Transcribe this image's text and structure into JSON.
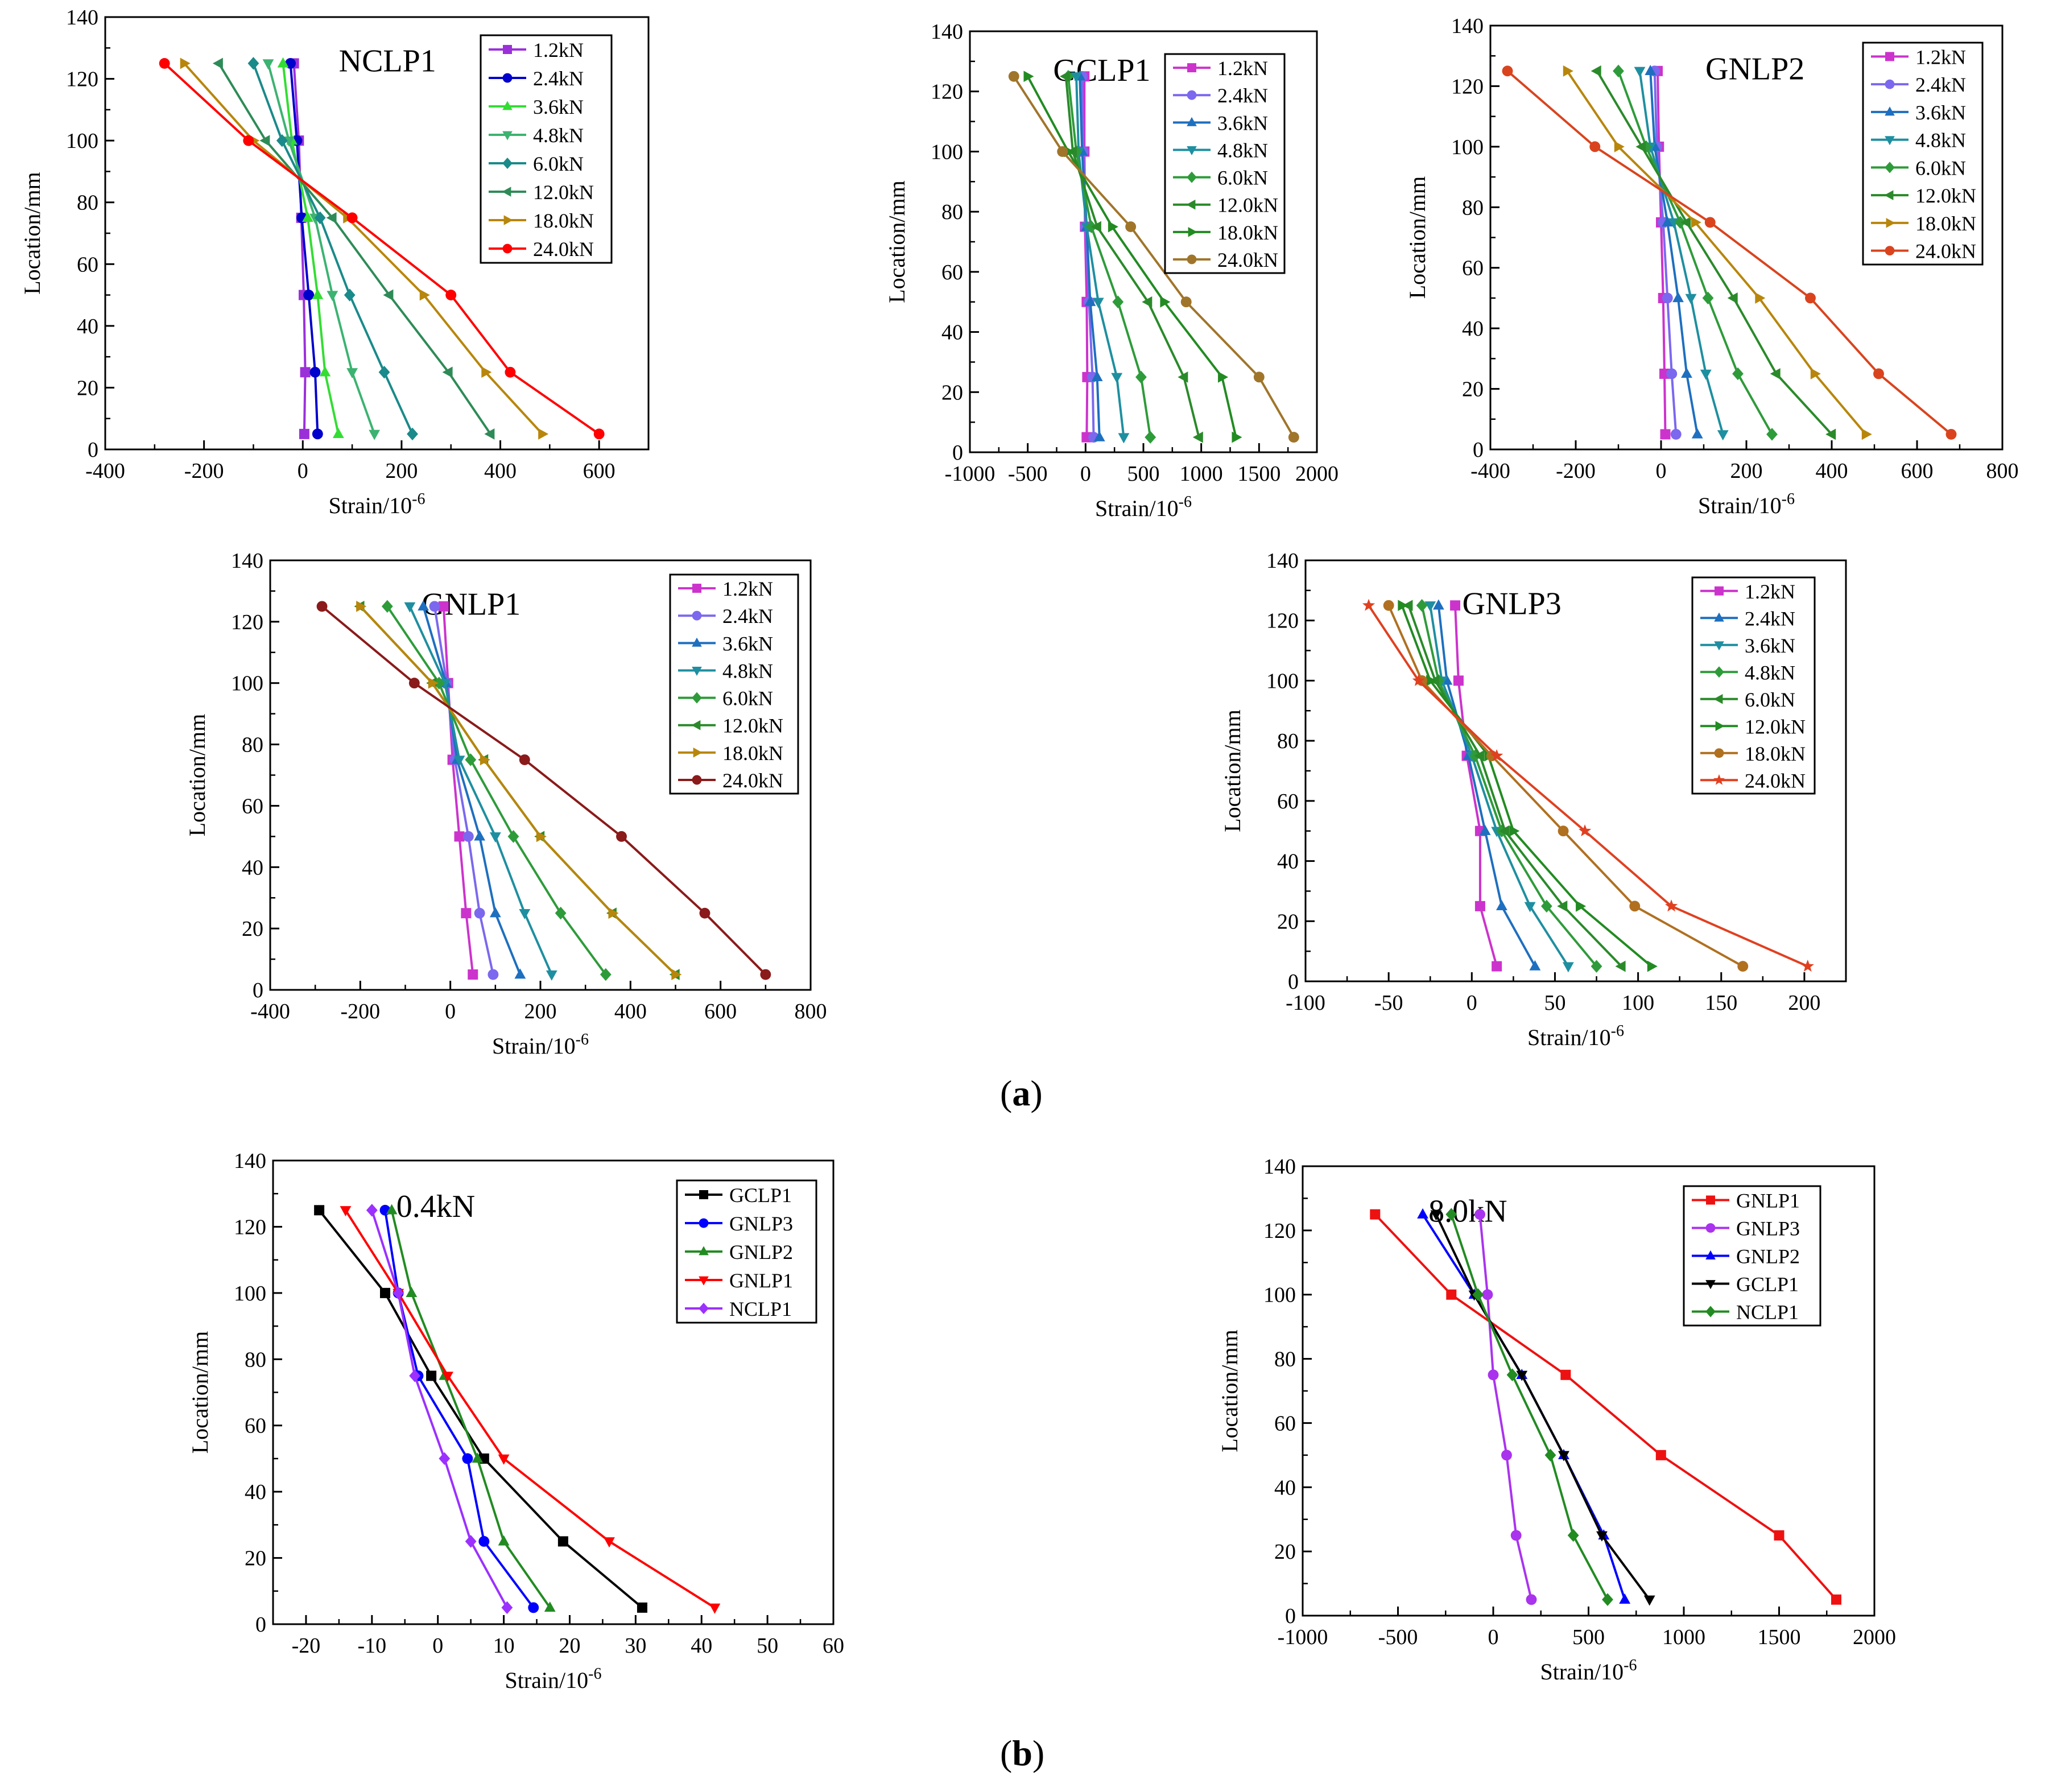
{
  "figure": {
    "label_a": "a",
    "label_b": "b"
  },
  "chart_data": [
    {
      "type": "line",
      "title": "NCLP1",
      "xlabel": "Strain/10",
      "xlabel_sup": "-6",
      "ylabel": "Location/mm",
      "xlim": [
        -400,
        700
      ],
      "ylim": [
        0,
        140
      ],
      "xticks": [
        -400,
        -200,
        0,
        200,
        400,
        600
      ],
      "yticks": [
        0,
        20,
        40,
        60,
        80,
        100,
        120,
        140
      ],
      "grid": false,
      "legend": "top-right",
      "y": [
        5,
        25,
        50,
        75,
        100,
        125
      ],
      "series": [
        {
          "name": "1.2kN",
          "color": "#9b30d9",
          "marker": "square",
          "x": [
            3,
            5,
            2,
            -3,
            -8,
            -18
          ]
        },
        {
          "name": "2.4kN",
          "color": "#0000cc",
          "marker": "circle",
          "x": [
            30,
            25,
            12,
            -2,
            -12,
            -25
          ]
        },
        {
          "name": "3.6kN",
          "color": "#33dd33",
          "marker": "triangle-up",
          "x": [
            72,
            45,
            30,
            10,
            -22,
            -40
          ]
        },
        {
          "name": "4.8kN",
          "color": "#3cb371",
          "marker": "triangle-down",
          "x": [
            145,
            100,
            60,
            25,
            -28,
            -70
          ]
        },
        {
          "name": "6.0kN",
          "color": "#1a8a8a",
          "marker": "diamond",
          "x": [
            222,
            165,
            95,
            35,
            -42,
            -100
          ]
        },
        {
          "name": "12.0kN",
          "color": "#2e8b57",
          "marker": "triangle-left",
          "x": [
            380,
            295,
            175,
            60,
            -75,
            -170
          ]
        },
        {
          "name": "18.0kN",
          "color": "#b8860b",
          "marker": "triangle-right",
          "x": [
            485,
            370,
            245,
            90,
            -100,
            -240
          ]
        },
        {
          "name": "24.0kN",
          "color": "#ff0000",
          "marker": "circle",
          "x": [
            600,
            420,
            300,
            100,
            -110,
            -280
          ]
        }
      ]
    },
    {
      "type": "line",
      "title": "GCLP1",
      "xlabel": "Strain/10",
      "xlabel_sup": "-6",
      "ylabel": "Location/mm",
      "xlim": [
        -1000,
        2000
      ],
      "ylim": [
        0,
        140
      ],
      "xticks": [
        -1000,
        -500,
        0,
        500,
        1000,
        1500,
        2000
      ],
      "yticks": [
        0,
        20,
        40,
        60,
        80,
        100,
        120,
        140
      ],
      "grid": false,
      "legend": "top-right",
      "y": [
        5,
        25,
        50,
        75,
        100,
        125
      ],
      "series": [
        {
          "name": "1.2kN",
          "color": "#cc33cc",
          "marker": "square",
          "x": [
            10,
            15,
            10,
            -5,
            -10,
            -10
          ]
        },
        {
          "name": "2.4kN",
          "color": "#7b68ee",
          "marker": "circle",
          "x": [
            70,
            60,
            30,
            0,
            -20,
            -30
          ]
        },
        {
          "name": "3.6kN",
          "color": "#1e6fbf",
          "marker": "triangle-up",
          "x": [
            120,
            100,
            40,
            10,
            -30,
            -50
          ]
        },
        {
          "name": "4.8kN",
          "color": "#1e8fa0",
          "marker": "triangle-down",
          "x": [
            330,
            270,
            110,
            10,
            -60,
            -80
          ]
        },
        {
          "name": "6.0kN",
          "color": "#2e9b3a",
          "marker": "diamond",
          "x": [
            560,
            480,
            280,
            50,
            -80,
            -150
          ]
        },
        {
          "name": "12.0kN",
          "color": "#2a8a2a",
          "marker": "triangle-left",
          "x": [
            980,
            850,
            540,
            100,
            -110,
            -170
          ]
        },
        {
          "name": "18.0kN",
          "color": "#228b22",
          "marker": "triangle-right",
          "x": [
            1300,
            1180,
            680,
            230,
            -150,
            -500
          ]
        },
        {
          "name": "24.0kN",
          "color": "#a0752a",
          "marker": "circle",
          "x": [
            1800,
            1500,
            870,
            390,
            -200,
            -620
          ]
        }
      ]
    },
    {
      "type": "line",
      "title": "GNLP2",
      "xlabel": "Strain/10",
      "xlabel_sup": "-6",
      "ylabel": "Location/mm",
      "xlim": [
        -400,
        800
      ],
      "ylim": [
        0,
        140
      ],
      "xticks": [
        -400,
        -200,
        0,
        200,
        400,
        600,
        800
      ],
      "yticks": [
        0,
        20,
        40,
        60,
        80,
        100,
        120,
        140
      ],
      "grid": false,
      "legend": "top-right",
      "y": [
        5,
        25,
        50,
        75,
        100,
        125
      ],
      "series": [
        {
          "name": "1.2kN",
          "color": "#cc33cc",
          "marker": "square",
          "x": [
            10,
            8,
            5,
            0,
            -5,
            -8
          ]
        },
        {
          "name": "2.4kN",
          "color": "#7b68ee",
          "marker": "circle",
          "x": [
            35,
            25,
            15,
            5,
            -10,
            -15
          ]
        },
        {
          "name": "3.6kN",
          "color": "#1e6fbf",
          "marker": "triangle-up",
          "x": [
            85,
            60,
            40,
            15,
            -15,
            -25
          ]
        },
        {
          "name": "4.8kN",
          "color": "#1e8fa0",
          "marker": "triangle-down",
          "x": [
            145,
            105,
            70,
            30,
            -25,
            -50
          ]
        },
        {
          "name": "6.0kN",
          "color": "#2e9b3a",
          "marker": "diamond",
          "x": [
            260,
            180,
            110,
            45,
            -35,
            -100
          ]
        },
        {
          "name": "12.0kN",
          "color": "#2a8a2a",
          "marker": "triangle-left",
          "x": [
            400,
            270,
            170,
            60,
            -45,
            -150
          ]
        },
        {
          "name": "18.0kN",
          "color": "#b8860b",
          "marker": "triangle-right",
          "x": [
            480,
            360,
            230,
            80,
            -100,
            -220
          ]
        },
        {
          "name": "24.0kN",
          "color": "#d9441e",
          "marker": "circle",
          "x": [
            680,
            510,
            350,
            115,
            -155,
            -360
          ]
        }
      ]
    },
    {
      "type": "line",
      "title": "GNLP1",
      "xlabel": "Strain/10",
      "xlabel_sup": "-6",
      "ylabel": "Location/mm",
      "xlim": [
        -400,
        800
      ],
      "ylim": [
        0,
        140
      ],
      "xticks": [
        -400,
        -200,
        0,
        200,
        400,
        600,
        800
      ],
      "yticks": [
        0,
        20,
        40,
        60,
        80,
        100,
        120,
        140
      ],
      "grid": false,
      "legend": "top-right",
      "y": [
        5,
        25,
        50,
        75,
        100,
        125
      ],
      "series": [
        {
          "name": "1.2kN",
          "color": "#cc33cc",
          "marker": "square",
          "x": [
            50,
            35,
            20,
            5,
            -5,
            -15
          ]
        },
        {
          "name": "2.4kN",
          "color": "#7b68ee",
          "marker": "circle",
          "x": [
            95,
            65,
            40,
            10,
            -8,
            -35
          ]
        },
        {
          "name": "3.6kN",
          "color": "#1e6fbf",
          "marker": "triangle-up",
          "x": [
            155,
            100,
            65,
            15,
            -10,
            -60
          ]
        },
        {
          "name": "4.8kN",
          "color": "#1e8fa0",
          "marker": "triangle-down",
          "x": [
            225,
            165,
            100,
            20,
            -12,
            -90
          ]
        },
        {
          "name": "6.0kN",
          "color": "#2e9b3a",
          "marker": "diamond",
          "x": [
            345,
            245,
            140,
            45,
            -25,
            -140
          ]
        },
        {
          "name": "12.0kN",
          "color": "#2a8a2a",
          "marker": "triangle-left",
          "x": [
            500,
            360,
            200,
            75,
            -40,
            -200
          ]
        },
        {
          "name": "18.0kN",
          "color": "#b8860b",
          "marker": "triangle-right",
          "x": [
            500,
            360,
            200,
            75,
            -40,
            -200
          ]
        },
        {
          "name": "24.0kN",
          "color": "#8b1a1a",
          "marker": "circle",
          "x": [
            700,
            565,
            380,
            165,
            -80,
            -285
          ]
        }
      ]
    },
    {
      "type": "line",
      "title": "GNLP3",
      "xlabel": "Strain/10",
      "xlabel_sup": "-6",
      "ylabel": "Location/mm",
      "xlim": [
        -100,
        225
      ],
      "ylim": [
        0,
        140
      ],
      "xticks": [
        -100,
        -50,
        0,
        50,
        100,
        150,
        200
      ],
      "yticks": [
        0,
        20,
        40,
        60,
        80,
        100,
        120,
        140
      ],
      "grid": false,
      "legend": "top-right",
      "y": [
        5,
        25,
        50,
        75,
        100,
        125
      ],
      "series": [
        {
          "name": "1.2kN",
          "color": "#cc33cc",
          "marker": "square",
          "x": [
            15,
            5,
            5,
            -3,
            -8,
            -10
          ]
        },
        {
          "name": "2.4kN",
          "color": "#1e6fbf",
          "marker": "triangle-up",
          "x": [
            38,
            18,
            8,
            -2,
            -15,
            -20
          ]
        },
        {
          "name": "3.6kN",
          "color": "#1e8fa0",
          "marker": "triangle-down",
          "x": [
            58,
            35,
            15,
            0,
            -18,
            -25
          ]
        },
        {
          "name": "4.8kN",
          "color": "#2e9b3a",
          "marker": "diamond",
          "x": [
            75,
            45,
            18,
            2,
            -20,
            -30
          ]
        },
        {
          "name": "6.0kN",
          "color": "#2a8a2a",
          "marker": "triangle-left",
          "x": [
            90,
            55,
            20,
            5,
            -22,
            -38
          ]
        },
        {
          "name": "12.0kN",
          "color": "#228b22",
          "marker": "triangle-right",
          "x": [
            108,
            65,
            25,
            10,
            -25,
            -42
          ]
        },
        {
          "name": "18.0kN",
          "color": "#b07020",
          "marker": "circle",
          "x": [
            163,
            98,
            55,
            12,
            -30,
            -50
          ]
        },
        {
          "name": "24.0kN",
          "color": "#e04020",
          "marker": "star",
          "x": [
            202,
            120,
            68,
            15,
            -32,
            -62
          ]
        }
      ]
    },
    {
      "type": "line",
      "title": "0.4kN",
      "xlabel": "Strain/10",
      "xlabel_sup": "-6",
      "ylabel": "Location/mm",
      "xlim": [
        -25,
        60
      ],
      "ylim": [
        0,
        140
      ],
      "xticks": [
        -20,
        -10,
        0,
        10,
        20,
        30,
        40,
        50,
        60
      ],
      "yticks": [
        0,
        20,
        40,
        60,
        80,
        100,
        120,
        140
      ],
      "grid": false,
      "legend": "top-right",
      "y": [
        5,
        25,
        50,
        75,
        100,
        125
      ],
      "series": [
        {
          "name": "GCLP1",
          "color": "#000000",
          "marker": "square",
          "x": [
            31,
            19,
            7,
            -1,
            -8,
            -18
          ]
        },
        {
          "name": "GNLP3",
          "color": "#0000ff",
          "marker": "circle",
          "x": [
            14.5,
            7,
            4.5,
            -3,
            -6,
            -8
          ]
        },
        {
          "name": "GNLP2",
          "color": "#228b22",
          "marker": "triangle-up",
          "x": [
            17,
            10,
            6,
            1,
            -4,
            -7
          ]
        },
        {
          "name": "GNLP1",
          "color": "#ff0000",
          "marker": "triangle-down",
          "x": [
            42,
            26,
            10,
            1.5,
            -6,
            -14
          ]
        },
        {
          "name": "NCLP1",
          "color": "#9b30ff",
          "marker": "diamond",
          "x": [
            10.5,
            5,
            1,
            -3.5,
            -6,
            -10
          ]
        }
      ]
    },
    {
      "type": "line",
      "title": "8.0kN",
      "xlabel": "Strain/10",
      "xlabel_sup": "-6",
      "ylabel": "Location/mm",
      "xlim": [
        -1000,
        2000
      ],
      "ylim": [
        0,
        140
      ],
      "xticks": [
        -1000,
        -500,
        0,
        500,
        1000,
        1500,
        2000
      ],
      "yticks": [
        0,
        20,
        40,
        60,
        80,
        100,
        120,
        140
      ],
      "grid": false,
      "legend": "top-right",
      "y": [
        5,
        25,
        50,
        75,
        100,
        125
      ],
      "series": [
        {
          "name": "GNLP1",
          "color": "#ee1111",
          "marker": "square",
          "x": [
            1800,
            1500,
            880,
            380,
            -220,
            -620
          ]
        },
        {
          "name": "GNLP3",
          "color": "#aa33ee",
          "marker": "circle",
          "x": [
            200,
            120,
            70,
            0,
            -30,
            -70
          ]
        },
        {
          "name": "GNLP2",
          "color": "#0000ff",
          "marker": "triangle-up",
          "x": [
            690,
            580,
            370,
            150,
            -100,
            -370
          ]
        },
        {
          "name": "GCLP1",
          "color": "#000000",
          "marker": "triangle-down",
          "x": [
            820,
            570,
            370,
            150,
            -100,
            -300
          ]
        },
        {
          "name": "NCLP1",
          "color": "#228b22",
          "marker": "diamond",
          "x": [
            600,
            420,
            300,
            100,
            -80,
            -220
          ]
        }
      ]
    }
  ]
}
